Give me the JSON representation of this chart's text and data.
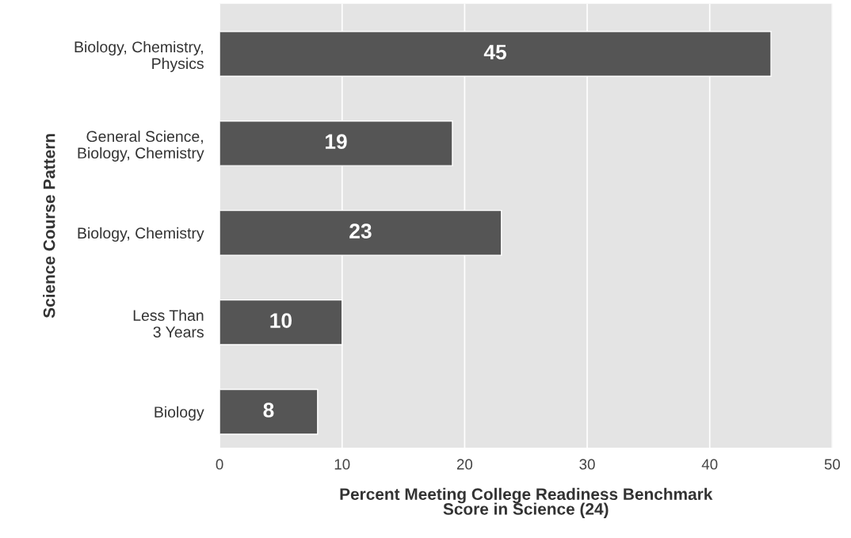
{
  "chart_data": {
    "type": "bar",
    "orientation": "horizontal",
    "categories": [
      "Biology, Chemistry,\nPhysics",
      "General Science,\nBiology, Chemistry",
      "Biology, Chemistry",
      "Less Than\n3 Years",
      "Biology"
    ],
    "values": [
      45,
      19,
      23,
      10,
      8
    ],
    "color": "#555555",
    "xlabel": "Percent Meeting College Readiness Benchmark\nScore in Science (24)",
    "ylabel": "Science Course Pattern",
    "xlim": [
      0,
      50
    ],
    "xticks": [
      0,
      10,
      20,
      30,
      40,
      50
    ],
    "grid": "x",
    "data_labels": true
  }
}
